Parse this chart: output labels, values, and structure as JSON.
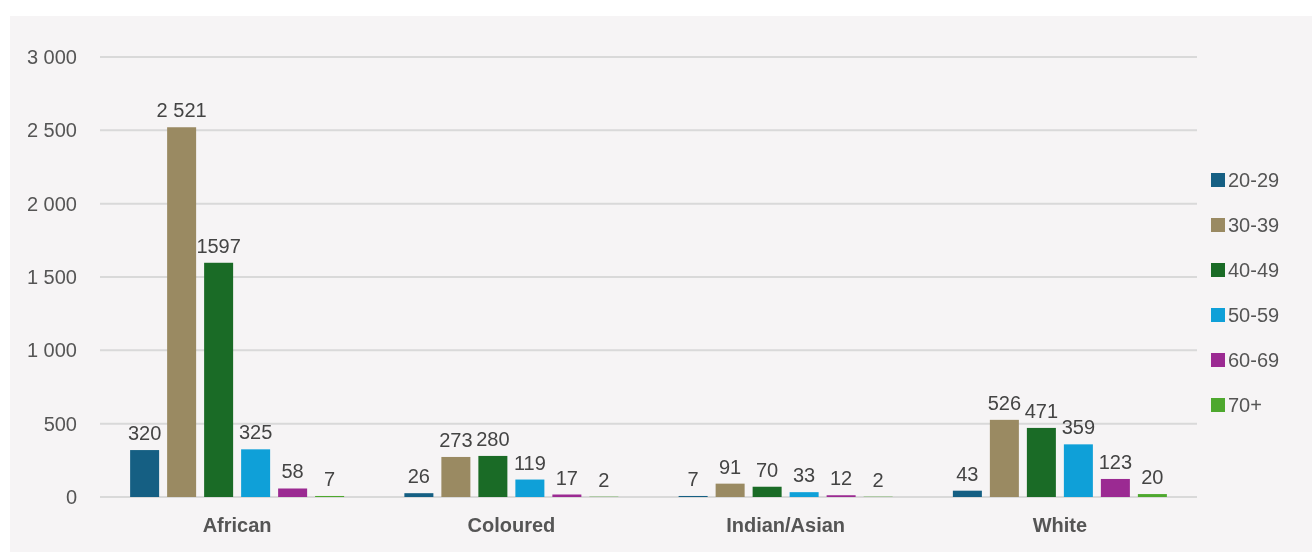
{
  "chart_data": {
    "type": "bar",
    "categories": [
      "African",
      "Coloured",
      "Indian/Asian",
      "White"
    ],
    "series": [
      {
        "name": "20-29",
        "color": "#155f83",
        "values": [
          320,
          26,
          7,
          43
        ],
        "value_labels": [
          "320",
          "26",
          "7",
          "43"
        ]
      },
      {
        "name": "30-39",
        "color": "#9a8a62",
        "values": [
          2521,
          273,
          91,
          526
        ],
        "value_labels": [
          "2 521",
          "273",
          "91",
          "526"
        ]
      },
      {
        "name": "40-49",
        "color": "#1a6b26",
        "values": [
          1597,
          280,
          70,
          471
        ],
        "value_labels": [
          "1597",
          "280",
          "70",
          "471"
        ]
      },
      {
        "name": "50-59",
        "color": "#0fa0d8",
        "values": [
          325,
          119,
          33,
          359
        ],
        "value_labels": [
          "325",
          "119",
          "33",
          "359"
        ]
      },
      {
        "name": "60-69",
        "color": "#9b2a92",
        "values": [
          58,
          17,
          12,
          123
        ],
        "value_labels": [
          "58",
          "17",
          "12",
          "123"
        ]
      },
      {
        "name": "70+",
        "color": "#4ea82e",
        "values": [
          7,
          2,
          2,
          20
        ],
        "value_labels": [
          "7",
          "2",
          "2",
          "20"
        ]
      }
    ],
    "ylim": [
      0,
      3000
    ],
    "yticks": [
      0,
      500,
      {
        "value": 1000,
        "label": "1 000"
      },
      {
        "value": 1500,
        "label": "1 500"
      },
      {
        "value": 2000,
        "label": "2 000"
      },
      {
        "value": 2500,
        "label": "2 500"
      },
      {
        "value": 3000,
        "label": "3 000"
      }
    ],
    "grid": "y",
    "legend": "right"
  }
}
